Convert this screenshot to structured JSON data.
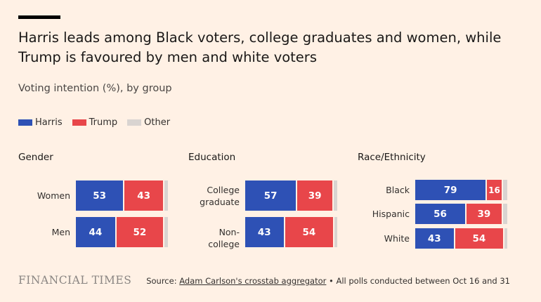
{
  "title": "Harris leads among Black voters, college graduates and women, while Trump is favoured by men and white voters",
  "subtitle": "Voting intention (%), by group",
  "colors": {
    "harris": "#2e51b5",
    "trump": "#e8464a",
    "other": "#d9d4d1",
    "background": "#fff1e5"
  },
  "footer": {
    "logo": "FINANCIAL TIMES",
    "source_prefix": "Source: ",
    "source_link": "Adam Carlson's crosstab aggregator",
    "source_suffix": " • All polls conducted between Oct 16 and 31"
  },
  "chart_data": {
    "type": "bar",
    "stacked": true,
    "orientation": "horizontal",
    "legend": [
      "Harris",
      "Trump",
      "Other"
    ],
    "panels": [
      {
        "title": "Gender",
        "categories": [
          "Women",
          "Men"
        ],
        "series": [
          {
            "name": "Harris",
            "values": [
              53,
              44
            ]
          },
          {
            "name": "Trump",
            "values": [
              43,
              52
            ]
          },
          {
            "name": "Other",
            "values": [
              4,
              4
            ]
          }
        ]
      },
      {
        "title": "Education",
        "categories": [
          "College graduate",
          "Non-college"
        ],
        "series": [
          {
            "name": "Harris",
            "values": [
              57,
              43
            ]
          },
          {
            "name": "Trump",
            "values": [
              39,
              54
            ]
          },
          {
            "name": "Other",
            "values": [
              4,
              3
            ]
          }
        ]
      },
      {
        "title": "Race/Ethnicity",
        "categories": [
          "Black",
          "Hispanic",
          "White"
        ],
        "series": [
          {
            "name": "Harris",
            "values": [
              79,
              56,
              43
            ]
          },
          {
            "name": "Trump",
            "values": [
              16,
              39,
              54
            ]
          },
          {
            "name": "Other",
            "values": [
              5,
              5,
              3
            ]
          }
        ]
      }
    ]
  }
}
